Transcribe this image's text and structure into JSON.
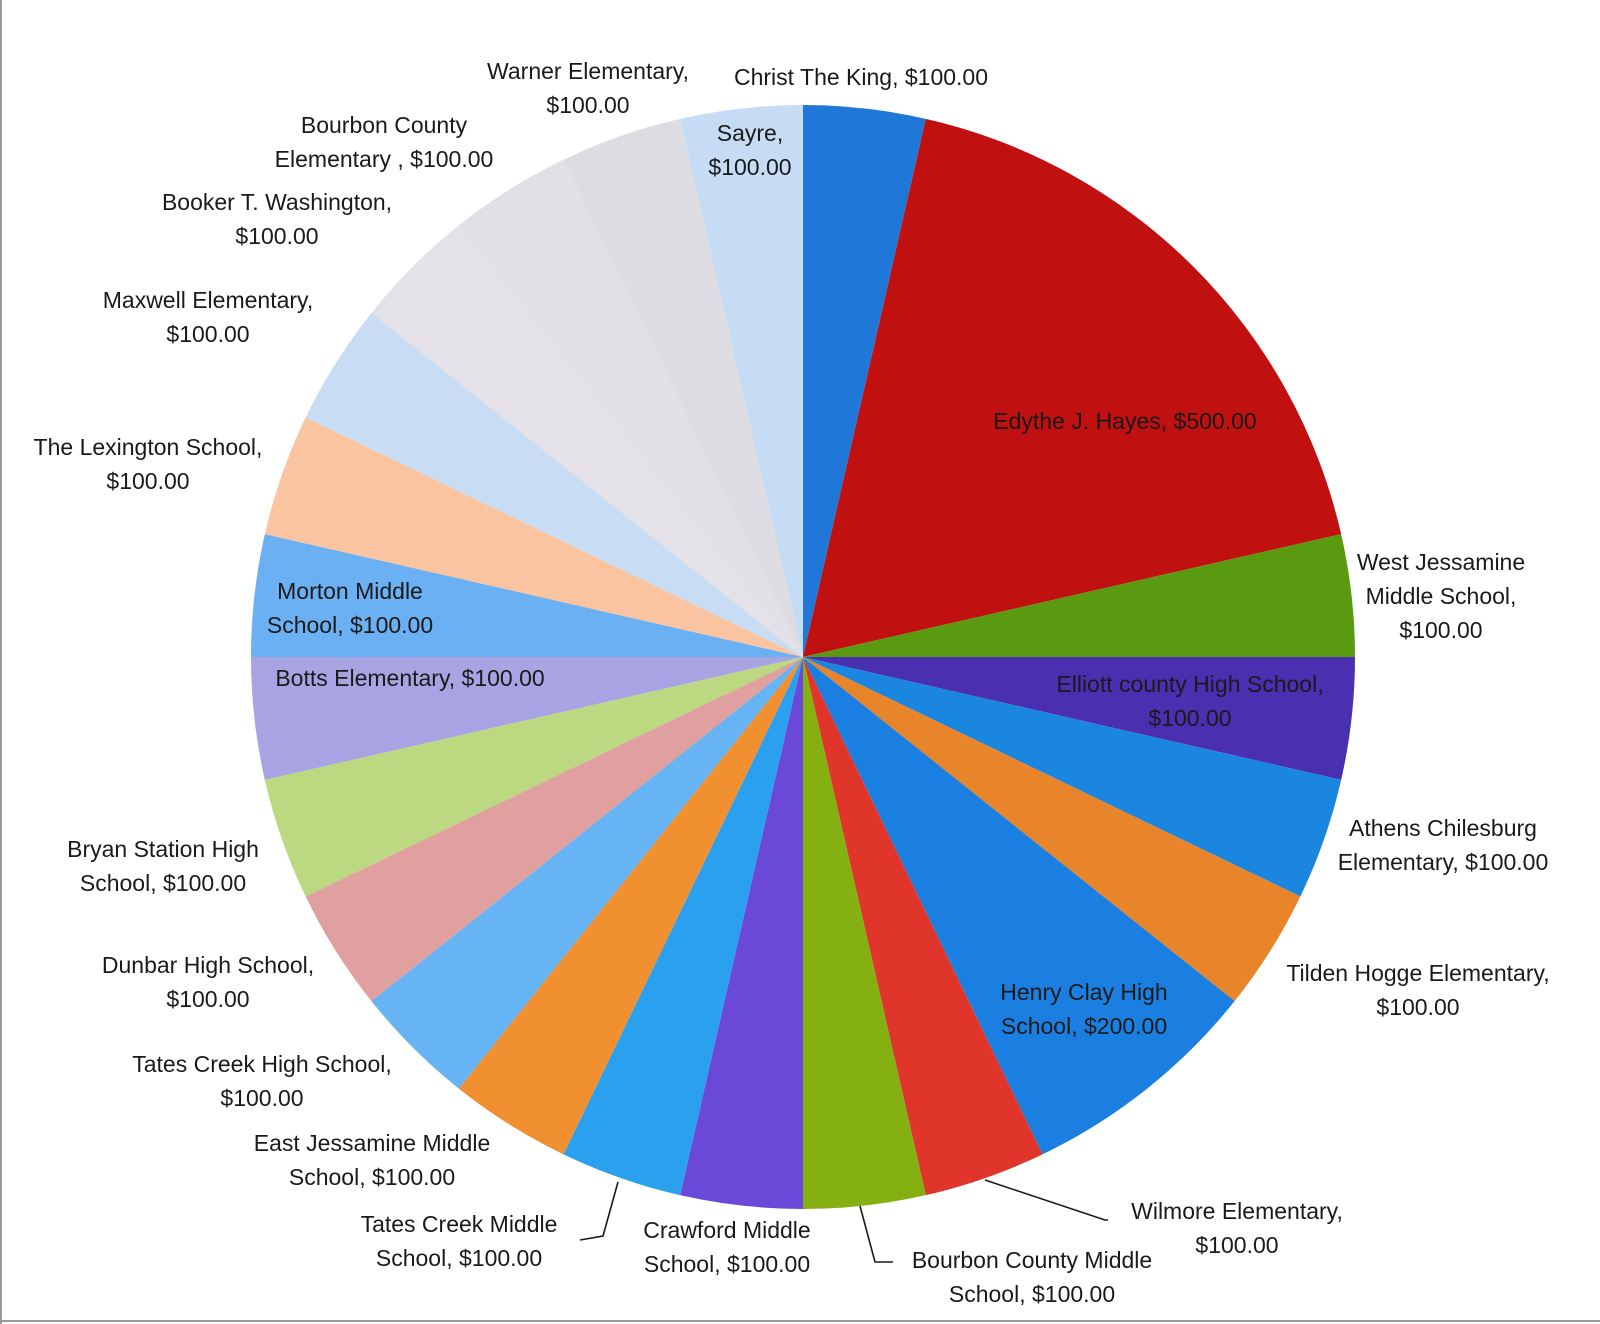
{
  "chart_data": {
    "type": "pie",
    "title": "",
    "start_angle_deg": 0,
    "direction": "clockwise",
    "slices": [
      {
        "label": "Christ The King, $100.00",
        "value": 100,
        "color": "#1f78d8"
      },
      {
        "label": "Edythe J. Hayes, $500.00",
        "value": 500,
        "color": "#c01010"
      },
      {
        "label": "West Jessamine Middle School, $100.00",
        "value": 100,
        "color": "#5a9a10"
      },
      {
        "label": "Elliott county High School, $100.00",
        "value": 100,
        "color": "#4a2fb0"
      },
      {
        "label": "Athens Chilesburg Elementary, $100.00",
        "value": 100,
        "color": "#1b86e0"
      },
      {
        "label": "Tilden Hogge Elementary, $100.00",
        "value": 100,
        "color": "#e8842a"
      },
      {
        "label": "Henry Clay High School, $200.00",
        "value": 200,
        "color": "#1a7fe0"
      },
      {
        "label": "Wilmore Elementary, $100.00",
        "value": 100,
        "color": "#e0352a"
      },
      {
        "label": "Bourbon County Middle School, $100.00",
        "value": 100,
        "color": "#85b012"
      },
      {
        "label": "Crawford Middle School, $100.00",
        "value": 100,
        "color": "#6a48d8"
      },
      {
        "label": "Tates Creek Middle School, $100.00",
        "value": 100,
        "color": "#2aa0ee"
      },
      {
        "label": "East Jessamine Middle School, $100.00",
        "value": 100,
        "color": "#f09030"
      },
      {
        "label": "Tates Creek High School, $100.00",
        "value": 100,
        "color": "#66b4f4"
      },
      {
        "label": "Dunbar High School, $100.00",
        "value": 100,
        "color": "#e0a0a0"
      },
      {
        "label": "Bryan Station High School, $100.00",
        "value": 100,
        "color": "#bcd880"
      },
      {
        "label": "Botts Elementary, $100.00",
        "value": 100,
        "color": "#a8a4e4"
      },
      {
        "label": "Morton Middle School, $100.00",
        "value": 100,
        "color": "#6cb0f4"
      },
      {
        "label": "The Lexington School, $100.00",
        "value": 100,
        "color": "#fac4a0"
      },
      {
        "label": "Maxwell Elementary, $100.00",
        "value": 100,
        "color": "#c8dcf4"
      },
      {
        "label": "Booker T. Washington, $100.00",
        "value": 100,
        "color": "#e4e2e8"
      },
      {
        "label": "Bourbon County Elementary , $100.00",
        "value": 100,
        "color": "#e2e0e6"
      },
      {
        "label": "Warner Elementary, $100.00",
        "value": 100,
        "color": "#dcdce2"
      },
      {
        "label": "Sayre, $100.00",
        "value": 100,
        "color": "#c6dcf4"
      }
    ],
    "legend": "none",
    "data_labels": "outside-and-inside"
  }
}
